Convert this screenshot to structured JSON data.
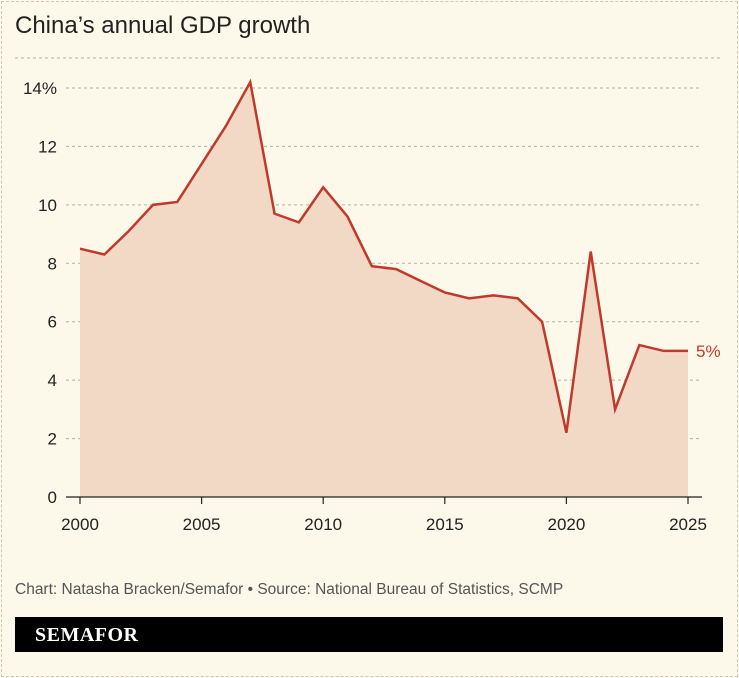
{
  "title": "China’s annual GDP growth",
  "source": "Chart: Natasha Bracken/Semafor • Source: National Bureau of Statistics, SCMP",
  "brand": "SEMAFOR",
  "chart_data": {
    "type": "area",
    "title": "China’s annual GDP growth",
    "x": [
      2000,
      2001,
      2002,
      2003,
      2004,
      2005,
      2006,
      2007,
      2008,
      2009,
      2010,
      2011,
      2012,
      2013,
      2014,
      2015,
      2016,
      2017,
      2018,
      2019,
      2020,
      2021,
      2022,
      2023,
      2024,
      2025
    ],
    "values": [
      8.5,
      8.3,
      9.1,
      10.0,
      10.1,
      11.4,
      12.7,
      14.2,
      9.7,
      9.4,
      10.6,
      9.6,
      7.9,
      7.8,
      7.4,
      7.0,
      6.8,
      6.9,
      6.8,
      6.0,
      2.2,
      8.4,
      3.0,
      5.2,
      5.0,
      5.0
    ],
    "ylim": [
      0,
      14
    ],
    "xlim": [
      2000,
      2025
    ],
    "yticks": [
      0,
      2,
      4,
      6,
      8,
      10,
      12,
      14
    ],
    "ytick_labels": [
      "0",
      "2",
      "4",
      "6",
      "8",
      "10",
      "12",
      "14%"
    ],
    "xticks": [
      2000,
      2005,
      2010,
      2015,
      2020,
      2025
    ],
    "xtick_labels": [
      "2000",
      "2005",
      "2010",
      "2015",
      "2020",
      "2025"
    ],
    "end_label": "5%",
    "grid": true,
    "colors": {
      "line": "#c0392b",
      "fill": "#f2d9c6",
      "grid": "#b5b0a0",
      "background": "#fcf9ea"
    }
  }
}
